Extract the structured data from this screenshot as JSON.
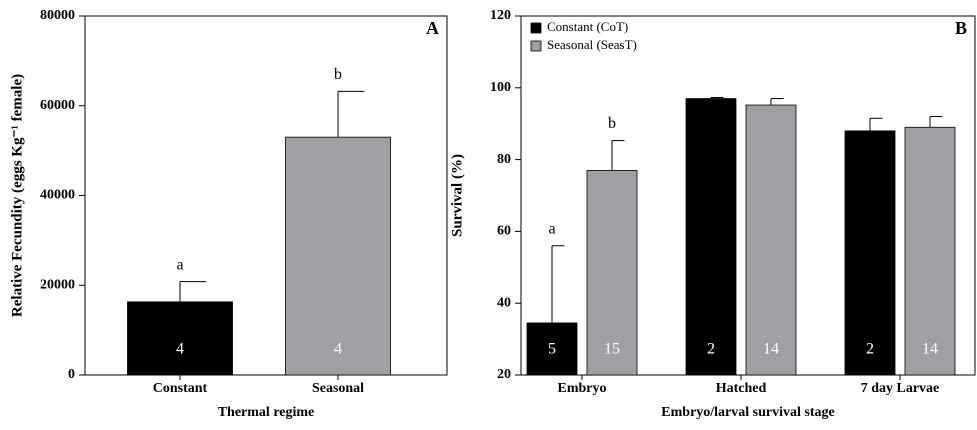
{
  "chart_data": [
    {
      "type": "bar",
      "panel": "A",
      "x_label": "Thermal regime",
      "y_label": "Relative Fecundity (eggs Kg⁻¹ female)",
      "categories": [
        "Constant",
        "Seasonal"
      ],
      "values": [
        16300,
        53000
      ],
      "errors": [
        4500,
        10200
      ],
      "colors": [
        "#000000",
        "#a0a0a4"
      ],
      "letters": [
        "a",
        "b"
      ],
      "n": [
        4,
        4
      ],
      "ylim": [
        0,
        80000
      ],
      "yticks": [
        0,
        20000,
        40000,
        60000,
        80000
      ]
    },
    {
      "type": "grouped-bar",
      "panel": "B",
      "x_label": "Embryo/larval survival stage",
      "y_label": "Survival (%)",
      "categories": [
        "Embryo",
        "Hatched",
        "7 day Larvae"
      ],
      "series": [
        {
          "name": "Constant (CoT)",
          "color": "#000000",
          "values": [
            34.5,
            97,
            88
          ],
          "errors": [
            21.5,
            0.3,
            3.5
          ],
          "letters": [
            "a",
            null,
            null
          ],
          "n": [
            5,
            2,
            2
          ]
        },
        {
          "name": "Seasonal (SeasT)",
          "color": "#a0a0a4",
          "values": [
            77,
            95.2,
            89
          ],
          "errors": [
            8.3,
            1.8,
            3
          ],
          "letters": [
            "b",
            null,
            null
          ],
          "n": [
            15,
            14,
            14
          ]
        }
      ],
      "legend": "top-left",
      "ylim": [
        20,
        120
      ],
      "yticks": [
        20,
        40,
        60,
        80,
        100,
        120
      ]
    }
  ]
}
